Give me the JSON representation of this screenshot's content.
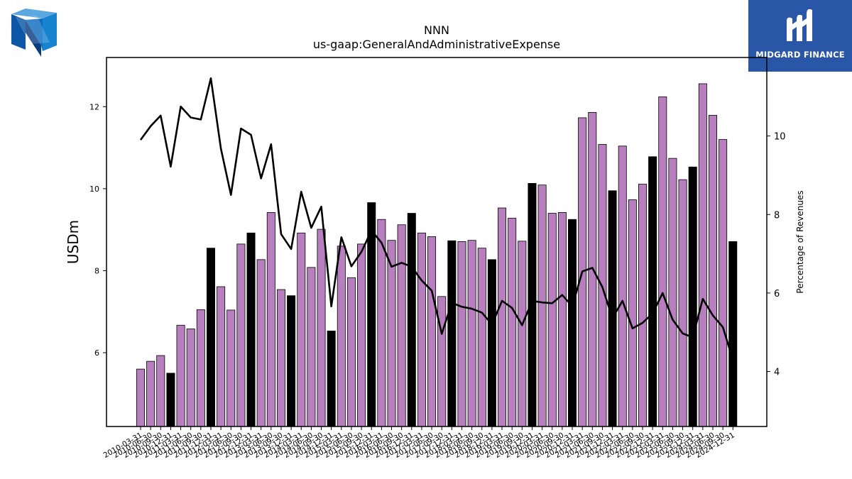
{
  "brand": {
    "name": "MIDGARD FINANCE",
    "accent": "#2a56a8"
  },
  "logo_icon": "nnn-logo-icon",
  "chart_data": {
    "type": "bar",
    "title": "NNN",
    "subtitle": "us-gaap:GeneralAndAdministrativeExpense",
    "ylabel": "USDm",
    "y2label": "Percentage of Revenues",
    "ylim": [
      4.2,
      13.2
    ],
    "y2lim": [
      2.6,
      12.0
    ],
    "yticks": [
      6,
      8,
      10,
      12
    ],
    "y2ticks": [
      4,
      6,
      8,
      10
    ],
    "colors": {
      "quarter": "#b87fbf",
      "fiscal_year": "#000000",
      "line": "#000000"
    },
    "categories": [
      "2010-03-31",
      "2010-06-30",
      "2010-09-30",
      "2010-12-31",
      "2011-03-31",
      "2011-06-30",
      "2011-09-30",
      "2011-12-31",
      "2012-03-31",
      "2012-06-30",
      "2012-09-30",
      "2012-12-31",
      "2013-03-31",
      "2013-06-30",
      "2013-09-30",
      "2013-12-31",
      "2014-03-31",
      "2014-06-30",
      "2014-09-30",
      "2014-12-31",
      "2015-03-31",
      "2015-06-30",
      "2015-09-30",
      "2015-12-31",
      "2016-03-31",
      "2016-06-30",
      "2016-09-30",
      "2016-12-31",
      "2017-03-31",
      "2017-06-30",
      "2017-09-30",
      "2017-12-31",
      "2018-03-31",
      "2018-06-30",
      "2018-09-30",
      "2018-12-31",
      "2019-03-31",
      "2019-06-30",
      "2019-09-30",
      "2019-12-31",
      "2020-03-31",
      "2020-06-30",
      "2020-09-30",
      "2020-12-31",
      "2021-03-31",
      "2021-06-30",
      "2021-09-30",
      "2021-12-31",
      "2022-03-31",
      "2022-06-30",
      "2022-09-30",
      "2022-12-31",
      "2023-03-31",
      "2023-06-30",
      "2023-09-30",
      "2023-12-31",
      "2024-03-31",
      "2024-06-30",
      "2024-09-30",
      "2024-12-31"
    ],
    "series": [
      {
        "values": [
          5.6,
          5.79,
          5.93,
          5.5,
          6.67,
          6.58,
          7.05,
          8.55,
          7.61,
          7.04,
          8.65,
          8.92,
          8.27,
          9.42,
          7.54,
          7.39,
          8.92,
          8.08,
          9.01,
          6.53,
          8.6,
          7.83,
          8.65,
          9.66,
          9.25,
          8.74,
          9.12,
          9.4,
          8.92,
          8.83,
          7.37,
          8.73,
          8.71,
          8.74,
          8.55,
          8.27,
          9.53,
          9.28,
          8.72,
          10.13,
          10.09,
          9.4,
          9.42,
          9.25,
          11.73,
          11.86,
          11.08,
          9.95,
          11.04,
          9.73,
          10.11,
          10.78,
          12.24,
          10.74,
          10.22,
          10.53,
          12.56,
          11.79,
          11.2,
          8.71
        ]
      },
      {
        "values": [
          9.9,
          10.25,
          10.52,
          9.22,
          10.75,
          10.47,
          10.42,
          11.47,
          9.68,
          8.5,
          10.19,
          10.03,
          8.92,
          9.79,
          7.5,
          7.12,
          8.58,
          7.66,
          8.2,
          5.66,
          7.42,
          6.68,
          7.05,
          7.59,
          7.28,
          6.67,
          6.77,
          6.67,
          6.32,
          6.06,
          4.96,
          5.75,
          5.65,
          5.6,
          5.5,
          5.2,
          5.8,
          5.62,
          5.18,
          5.8,
          5.76,
          5.74,
          5.95,
          5.66,
          6.55,
          6.64,
          6.15,
          5.36,
          5.8,
          5.1,
          5.24,
          5.48,
          6.0,
          5.32,
          4.97,
          4.87,
          5.85,
          5.43,
          5.13,
          4.3
        ]
      }
    ]
  }
}
